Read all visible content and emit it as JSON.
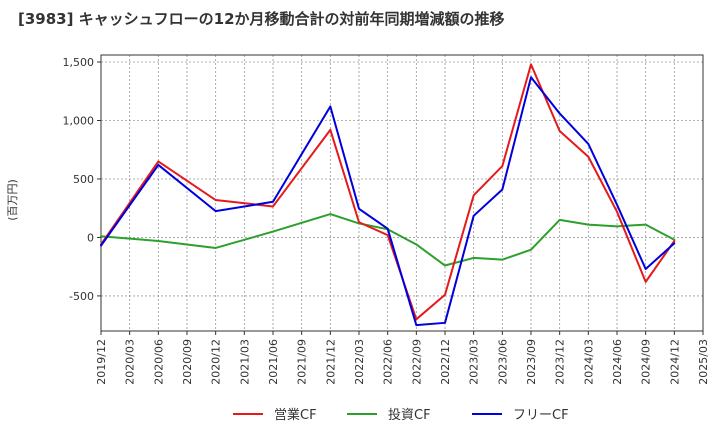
{
  "chart_data": {
    "type": "line",
    "title": "[3983]  キャッシュフローの12か月移動合計の対前年同期増減額の推移",
    "ylabel": "(百万円)",
    "ylim": [
      -800,
      1560
    ],
    "yticks": [
      -500,
      0,
      500,
      1000,
      1500
    ],
    "ytick_labels": [
      "-500",
      "0",
      "500",
      "1,000",
      "1,500"
    ],
    "xtick_labels": [
      "2019/12",
      "2020/03",
      "2020/06",
      "2020/09",
      "2020/12",
      "2021/03",
      "2021/06",
      "2021/09",
      "2021/12",
      "2022/03",
      "2022/06",
      "2022/09",
      "2022/12",
      "2023/03",
      "2023/06",
      "2023/09",
      "2023/12",
      "2024/03",
      "2024/06",
      "2024/09",
      "2024/12",
      "2025/03"
    ],
    "grid": true,
    "legend_position": "bottom",
    "series": [
      {
        "name": "営業CF",
        "color": "#e41a1c",
        "points": [
          [
            0,
            -60
          ],
          [
            2,
            650
          ],
          [
            4,
            320
          ],
          [
            6,
            265
          ],
          [
            8,
            920
          ],
          [
            9,
            130
          ],
          [
            10,
            20
          ],
          [
            11,
            -700
          ],
          [
            12,
            -490
          ],
          [
            13,
            360
          ],
          [
            14,
            610
          ],
          [
            15,
            1480
          ],
          [
            16,
            910
          ],
          [
            17,
            690
          ],
          [
            18,
            220
          ],
          [
            19,
            -380
          ],
          [
            20,
            -30
          ]
        ]
      },
      {
        "name": "投資CF",
        "color": "#2ca02c",
        "points": [
          [
            0,
            10
          ],
          [
            2,
            -30
          ],
          [
            4,
            -90
          ],
          [
            6,
            50
          ],
          [
            8,
            200
          ],
          [
            9,
            120
          ],
          [
            10,
            70
          ],
          [
            11,
            -60
          ],
          [
            12,
            -240
          ],
          [
            13,
            -175
          ],
          [
            14,
            -190
          ],
          [
            15,
            -105
          ],
          [
            16,
            150
          ],
          [
            17,
            110
          ],
          [
            18,
            95
          ],
          [
            19,
            110
          ],
          [
            20,
            -20
          ]
        ]
      },
      {
        "name": "フリーCF",
        "color": "#0000dd",
        "points": [
          [
            0,
            -70
          ],
          [
            2,
            620
          ],
          [
            4,
            225
          ],
          [
            6,
            305
          ],
          [
            8,
            1120
          ],
          [
            9,
            245
          ],
          [
            10,
            75
          ],
          [
            11,
            -750
          ],
          [
            12,
            -730
          ],
          [
            13,
            185
          ],
          [
            14,
            410
          ],
          [
            15,
            1370
          ],
          [
            16,
            1060
          ],
          [
            17,
            800
          ],
          [
            18,
            280
          ],
          [
            19,
            -270
          ],
          [
            20,
            -50
          ]
        ]
      }
    ]
  }
}
